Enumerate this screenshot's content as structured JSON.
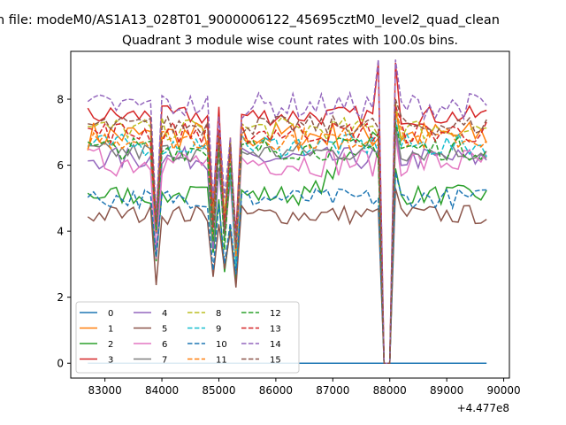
{
  "figure": {
    "suptitle": "n file: modeM0/AS1A13_028T01_9000006122_45695cztM0_level2_quad_clean"
  },
  "chart_data": {
    "type": "line",
    "title": "Quadrant 3 module wise count rates with 100.0s bins.",
    "xlabel": "",
    "ylabel": "",
    "x_offset_label": "+4.477e8",
    "xlim": [
      82400,
      90100
    ],
    "ylim": [
      -0.45,
      9.45
    ],
    "x_ticks": [
      83000,
      84000,
      85000,
      86000,
      87000,
      88000,
      89000,
      90000
    ],
    "y_ticks": [
      0,
      2,
      4,
      6,
      8
    ],
    "x_range": [
      82700,
      89700
    ],
    "x_step": 100,
    "grid": false,
    "legend": {
      "placement": "lower-left",
      "ncol": 4
    },
    "series": [
      {
        "name": "0",
        "color": "#1f77b4",
        "dash": "solid",
        "base": 0,
        "noise": 0,
        "const": 0
      },
      {
        "name": "1",
        "color": "#ff7f0e",
        "dash": "solid",
        "base": 6.9,
        "noise": 0.45
      },
      {
        "name": "2",
        "color": "#2ca02c",
        "dash": "solid",
        "base": 5.1,
        "noise": 0.3,
        "rise": 2.2
      },
      {
        "name": "3",
        "color": "#d62728",
        "dash": "solid",
        "base": 7.5,
        "noise": 0.3,
        "peak": 9.1
      },
      {
        "name": "4",
        "color": "#9467bd",
        "dash": "solid",
        "base": 6.2,
        "noise": 0.35
      },
      {
        "name": "5",
        "color": "#8c564b",
        "dash": "solid",
        "base": 4.5,
        "noise": 0.3
      },
      {
        "name": "6",
        "color": "#e377c2",
        "dash": "solid",
        "base": 6.1,
        "noise": 0.45
      },
      {
        "name": "7",
        "color": "#7f7f7f",
        "dash": "solid",
        "base": 6.4,
        "noise": 0.3
      },
      {
        "name": "8",
        "color": "#bcbd22",
        "dash": "dashed",
        "base": 7.1,
        "noise": 0.35
      },
      {
        "name": "9",
        "color": "#17becf",
        "dash": "dashed",
        "base": 6.6,
        "noise": 0.35
      },
      {
        "name": "10",
        "color": "#1f77b4",
        "dash": "dashed",
        "base": 5.0,
        "noise": 0.3
      },
      {
        "name": "11",
        "color": "#ff7f0e",
        "dash": "dashed",
        "base": 6.8,
        "noise": 0.35
      },
      {
        "name": "12",
        "color": "#2ca02c",
        "dash": "dashed",
        "base": 6.5,
        "noise": 0.35
      },
      {
        "name": "13",
        "color": "#d62728",
        "dash": "dashed",
        "base": 7.0,
        "noise": 0.35
      },
      {
        "name": "14",
        "color": "#9467bd",
        "dash": "dashed",
        "base": 7.8,
        "noise": 0.4,
        "peak": 9.2
      },
      {
        "name": "15",
        "color": "#8c564b",
        "dash": "dashed",
        "base": 7.2,
        "noise": 0.3
      }
    ],
    "dips": [
      {
        "x": 83900,
        "factor": 0.55
      },
      {
        "x": 84900,
        "factor": 0.55
      },
      {
        "x": 85100,
        "factor": 0.55
      },
      {
        "x": 85300,
        "factor": 0.45
      },
      {
        "x": 85200,
        "factor": 0.85
      }
    ],
    "gap": {
      "x_start": 87900,
      "x_end": 88000,
      "value": 0
    }
  }
}
